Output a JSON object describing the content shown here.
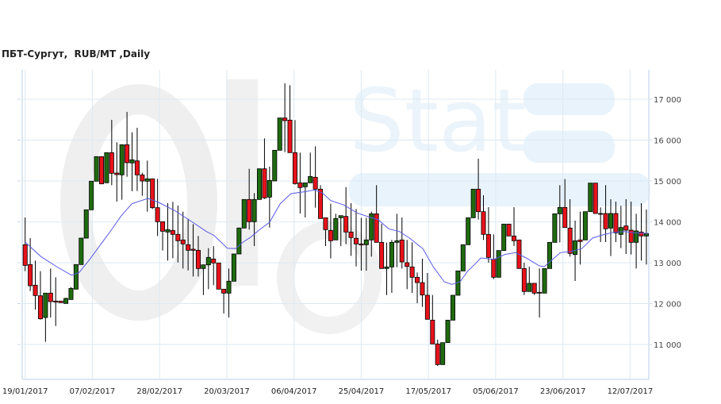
{
  "title": "ПБТ-Сургут,  RUB/MT ,Daily",
  "watermark": "Oil Stat",
  "chart_data": {
    "type": "candlestick",
    "title": "ПБТ-Сургут,  RUB/MT ,Daily",
    "ylim": [
      10200,
      17700
    ],
    "yticks": [
      11000,
      12000,
      13000,
      14000,
      15000,
      16000,
      17000
    ],
    "ytick_labels": [
      "11 000",
      "12 000",
      "13 000",
      "14 000",
      "15 000",
      "16 000",
      "17 000"
    ],
    "xtick_labels": [
      "19/01/2017",
      "07/02/2017",
      "28/02/2017",
      "20/03/2017",
      "06/04/2017",
      "25/04/2017",
      "17/05/2017",
      "05/06/2017",
      "23/06/2017",
      "12/07/2017"
    ],
    "y_axis_position": "right",
    "grid": true,
    "colors": {
      "up": "#1f6b0f",
      "down": "#e8121b",
      "ma": "#5a5ae6",
      "grid": "#dde9f3"
    },
    "ohlc_fields": [
      "open",
      "high",
      "low",
      "close"
    ],
    "ohlc": [
      [
        13440,
        14107,
        12793,
        12935
      ],
      [
        12955,
        13602,
        12307,
        12437
      ],
      [
        12450,
        13052,
        11854,
        12197
      ],
      [
        12191,
        12793,
        11608,
        11628
      ],
      [
        11660,
        12256,
        11065,
        12256
      ],
      [
        12256,
        12858,
        11660,
        12049
      ],
      [
        12062,
        12644,
        11453,
        12036
      ],
      [
        12062,
        12062,
        12023,
        12023
      ],
      [
        12003,
        12146,
        12003,
        12126
      ],
      [
        12100,
        12405,
        12100,
        12372
      ],
      [
        12353,
        12955,
        12353,
        12955
      ],
      [
        12955,
        13602,
        12955,
        13602
      ],
      [
        13602,
        14295,
        13602,
        14295
      ],
      [
        14295,
        14994,
        14295,
        14994
      ],
      [
        14994,
        15596,
        14994,
        15596
      ],
      [
        15596,
        15596,
        14929,
        14929
      ],
      [
        14955,
        15693,
        14955,
        15693
      ],
      [
        15693,
        16495,
        14897,
        15188
      ],
      [
        15194,
        15945,
        14495,
        15156
      ],
      [
        15149,
        15887,
        14541,
        15887
      ],
      [
        15887,
        16690,
        15104,
        15447
      ],
      [
        15440,
        16191,
        14748,
        15518
      ],
      [
        15492,
        16301,
        14754,
        15149
      ],
      [
        15149,
        15201,
        14638,
        14999
      ],
      [
        14994,
        15499,
        14249,
        15052
      ],
      [
        15052,
        15052,
        14314,
        14346
      ],
      [
        14346,
        15052,
        13654,
        14003
      ],
      [
        14003,
        14003,
        13298,
        13770
      ],
      [
        13751,
        14456,
        13052,
        13809
      ],
      [
        13790,
        14489,
        13110,
        13693
      ],
      [
        13693,
        14398,
        13006,
        13537
      ],
      [
        13557,
        14249,
        12858,
        13460
      ],
      [
        13440,
        14075,
        12812,
        13304
      ],
      [
        13330,
        13945,
        12663,
        13304
      ],
      [
        13304,
        13654,
        12663,
        12858
      ],
      [
        12858,
        12948,
        12210,
        12948
      ],
      [
        12948,
        13356,
        12353,
        13130
      ],
      [
        13091,
        13408,
        12450,
        12994
      ],
      [
        12994,
        12994,
        12353,
        12353
      ],
      [
        12353,
        12353,
        11757,
        12256
      ],
      [
        12256,
        12858,
        11660,
        12547
      ],
      [
        12547,
        13214,
        12547,
        13214
      ],
      [
        13214,
        13861,
        13214,
        13848
      ],
      [
        13848,
        14547,
        13848,
        14547
      ],
      [
        14547,
        15298,
        13809,
        14003
      ],
      [
        14003,
        14702,
        13408,
        14547
      ],
      [
        14547,
        15298,
        14547,
        15298
      ],
      [
        15298,
        16042,
        14560,
        14586
      ],
      [
        14605,
        15350,
        13861,
        15013
      ],
      [
        15000,
        15751,
        15000,
        15751
      ],
      [
        15751,
        16541,
        15751,
        16541
      ],
      [
        16541,
        17389,
        15706,
        16476
      ],
      [
        16489,
        17343,
        15693,
        15693
      ],
      [
        15693,
        16489,
        14910,
        14935
      ],
      [
        14955,
        15693,
        14204,
        14838
      ],
      [
        14858,
        14955,
        14107,
        14955
      ],
      [
        14955,
        15693,
        14955,
        15110
      ],
      [
        15091,
        15848,
        14346,
        14799
      ],
      [
        14799,
        14897,
        14081,
        14081
      ],
      [
        14100,
        14100,
        13408,
        13809
      ],
      [
        13790,
        14444,
        13104,
        13537
      ],
      [
        13557,
        14197,
        13557,
        14081
      ],
      [
        14100,
        14152,
        13408,
        14152
      ],
      [
        14133,
        14851,
        13453,
        13751
      ],
      [
        13751,
        14456,
        13168,
        13615
      ],
      [
        13596,
        14314,
        12909,
        13460
      ],
      [
        13460,
        14100,
        12806,
        13434
      ],
      [
        13440,
        14100,
        12806,
        13557
      ],
      [
        13557,
        14249,
        13149,
        14197
      ],
      [
        14197,
        14897,
        13498,
        13498
      ],
      [
        13498,
        13952,
        12858,
        12858
      ],
      [
        12858,
        13492,
        12210,
        12897
      ],
      [
        12897,
        13557,
        12262,
        13498
      ],
      [
        13498,
        14197,
        12890,
        13537
      ],
      [
        13557,
        14107,
        12858,
        13019
      ],
      [
        13000,
        13557,
        12353,
        12909
      ],
      [
        12897,
        13498,
        12262,
        12644
      ],
      [
        12644,
        12761,
        12010,
        12514
      ],
      [
        12514,
        13097,
        11919,
        12210
      ],
      [
        12204,
        12748,
        11615,
        11615
      ],
      [
        11595,
        12210,
        11013,
        11013
      ],
      [
        11013,
        11116,
        10476,
        10508
      ],
      [
        10508,
        11045,
        10508,
        11045
      ],
      [
        11045,
        11595,
        11045,
        11595
      ],
      [
        11595,
        12204,
        11595,
        12204
      ],
      [
        12204,
        12799,
        12204,
        12799
      ],
      [
        12799,
        13440,
        12799,
        13440
      ],
      [
        13440,
        14100,
        13440,
        14100
      ],
      [
        14100,
        14799,
        14100,
        14799
      ],
      [
        14799,
        15544,
        14055,
        14249
      ],
      [
        14249,
        14651,
        13557,
        13693
      ],
      [
        13693,
        14359,
        13000,
        13130
      ],
      [
        13084,
        13693,
        12599,
        12644
      ],
      [
        12644,
        13298,
        12644,
        13298
      ],
      [
        13298,
        13945,
        13298,
        13945
      ],
      [
        13945,
        13945,
        13654,
        13654
      ],
      [
        13654,
        14359,
        13408,
        13537
      ],
      [
        13557,
        13557,
        12858,
        12858
      ],
      [
        12858,
        13000,
        12210,
        12295
      ],
      [
        12295,
        12903,
        12295,
        12496
      ],
      [
        12496,
        12496,
        12210,
        12256
      ],
      [
        12275,
        12858,
        11660,
        12256
      ],
      [
        12256,
        12858,
        12256,
        12858
      ],
      [
        12858,
        13498,
        12858,
        13498
      ],
      [
        13498,
        14197,
        13498,
        14197
      ],
      [
        14197,
        14897,
        13498,
        14353
      ],
      [
        14353,
        15046,
        13861,
        13861
      ],
      [
        13848,
        14554,
        13149,
        13227
      ],
      [
        13201,
        14029,
        12553,
        13537
      ],
      [
        13557,
        14249,
        12955,
        13518
      ],
      [
        13557,
        14249,
        13557,
        14249
      ],
      [
        14249,
        14948,
        14249,
        14948
      ],
      [
        14948,
        14948,
        14204,
        14204
      ],
      [
        14204,
        14353,
        13505,
        14185
      ],
      [
        14204,
        14897,
        13505,
        13829
      ],
      [
        13848,
        14554,
        13162,
        14204
      ],
      [
        14204,
        14495,
        13505,
        13731
      ],
      [
        13693,
        14392,
        13356,
        13861
      ],
      [
        13900,
        14554,
        13214,
        13796
      ],
      [
        13796,
        14495,
        13201,
        13498
      ],
      [
        13498,
        14197,
        12858,
        13777
      ],
      [
        13751,
        14456,
        13052,
        13654
      ],
      [
        13654,
        14301,
        12955,
        13712
      ]
    ],
    "moving_average": {
      "candle_index": [
        0,
        3.1,
        6.2,
        9.1,
        10.6,
        12.7,
        14.8,
        16.9,
        18.9,
        21,
        24.1,
        26.2,
        29.3,
        32.9,
        35.6,
        37.1,
        39.7,
        41.3,
        42.8,
        44.4,
        45.9,
        48,
        50.1,
        52.2,
        54.8,
        56.9,
        58.4,
        60,
        62.6,
        65.2,
        67.8,
        69.3,
        71.4,
        73.5,
        75.5,
        78.1,
        80.2,
        82.3,
        83.8,
        85.4,
        86.9,
        88.5,
        89.5,
        92.1,
        94.2,
        96.3,
        98.4,
        101,
        102,
        103.6,
        105.1,
        107.2,
        109.3,
        111.4,
        113.4,
        115.5,
        117.6,
        119.7,
        122.3
      ],
      "value": [
        13505,
        13149,
        12903,
        12696,
        12761,
        13084,
        13440,
        13796,
        14152,
        14444,
        14573,
        14476,
        14282,
        13990,
        13764,
        13667,
        13356,
        13343,
        13505,
        13634,
        13796,
        13990,
        14444,
        14689,
        14735,
        14780,
        14702,
        14521,
        14411,
        14217,
        14107,
        14055,
        13829,
        13764,
        13602,
        13343,
        12890,
        12534,
        12469,
        12534,
        12793,
        12987,
        13117,
        13084,
        13201,
        13246,
        13117,
        12922,
        12909,
        13084,
        13246,
        13278,
        13343,
        13602,
        13680,
        13744,
        13764,
        13731,
        13719
      ]
    }
  }
}
